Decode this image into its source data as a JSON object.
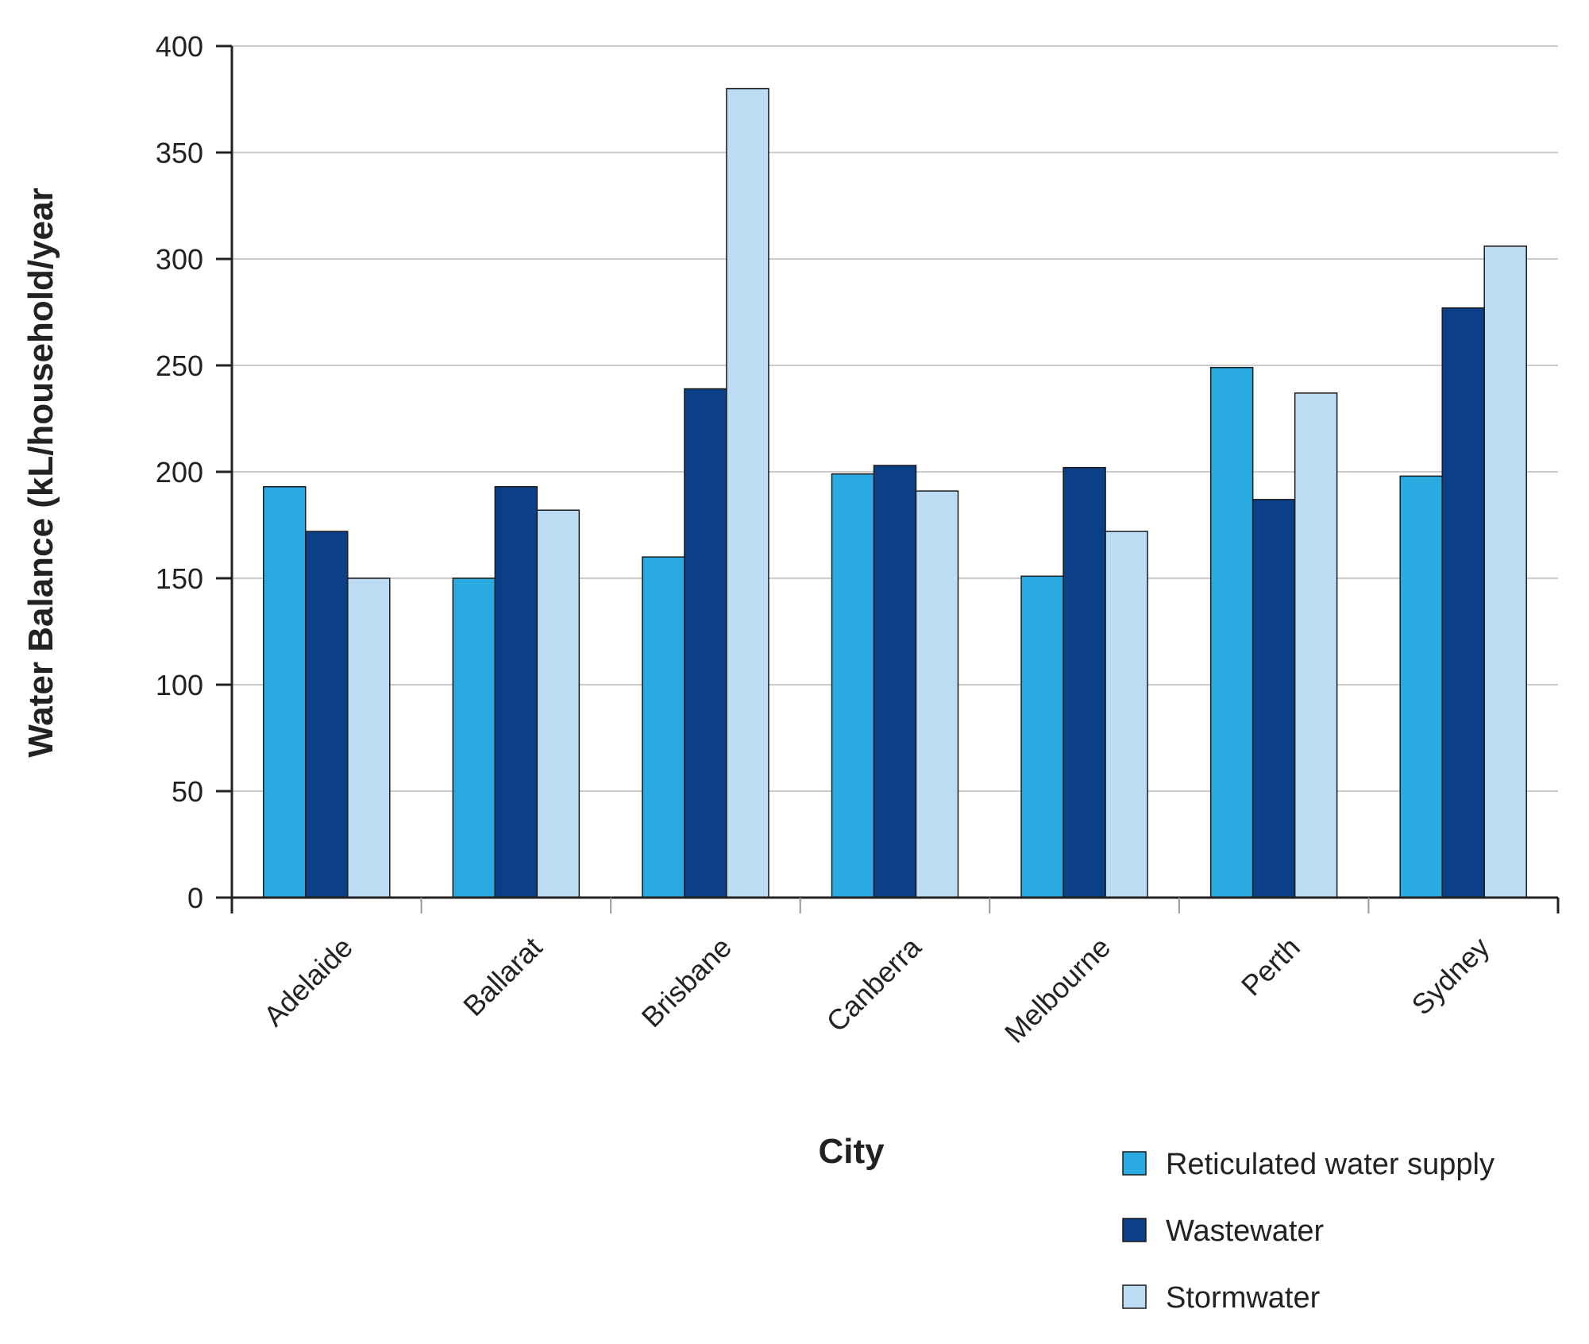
{
  "chart_data": {
    "type": "bar",
    "xlabel": "City",
    "ylabel": "Water Balance (kL/household/year",
    "ylim": [
      0,
      400
    ],
    "yticks": [
      0,
      50,
      100,
      150,
      200,
      250,
      300,
      350,
      400
    ],
    "grid": true,
    "legend_position": "bottom-right",
    "categories": [
      "Adelaide",
      "Ballarat",
      "Brisbane",
      "Canberra",
      "Melbourne",
      "Perth",
      "Sydney"
    ],
    "series": [
      {
        "name": "Reticulated water supply",
        "color": "#29abe2",
        "values": [
          193,
          150,
          160,
          199,
          151,
          249,
          198
        ]
      },
      {
        "name": "Wastewater",
        "color": "#0b3f87",
        "values": [
          172,
          193,
          239,
          203,
          202,
          187,
          277
        ]
      },
      {
        "name": "Stormwater",
        "color": "#bcdcf4",
        "values": [
          150,
          182,
          380,
          191,
          172,
          237,
          306
        ]
      }
    ]
  }
}
